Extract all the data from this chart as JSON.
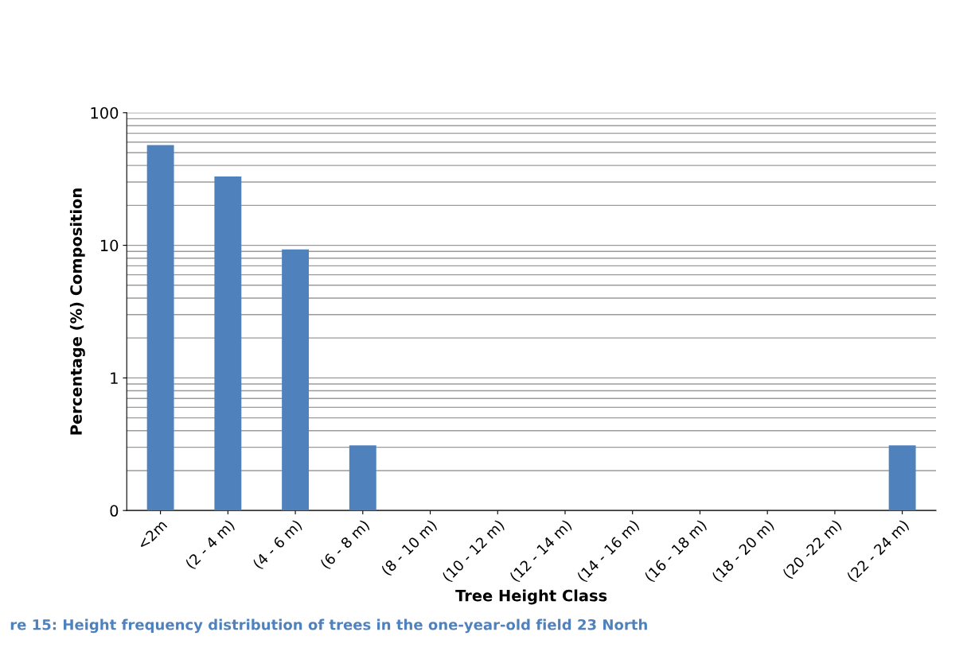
{
  "chart_data": {
    "type": "bar",
    "xlabel": "Tree Height Class",
    "ylabel": "Percentage (%) Composition",
    "categories": [
      "<2m",
      "(2 - 4 m)",
      "(4 - 6 m)",
      "(6 - 8 m)",
      "(8 - 10 m)",
      "(10 - 12 m)",
      "(12 - 14 m)",
      "(14 - 16 m)",
      "(16 - 18 m)",
      "(18 - 20 m)",
      "(20 -22 m)",
      "(22 - 24 m)"
    ],
    "values": [
      57,
      33,
      9.3,
      0.31,
      null,
      null,
      null,
      null,
      null,
      null,
      null,
      0.31
    ],
    "color": "#4f81bd",
    "log": true,
    "ylim": [
      0.1,
      100
    ],
    "yticks": [
      100,
      10,
      1,
      {
        "value": 0.1,
        "label": "0"
      }
    ],
    "grid": "y",
    "annotations": [
      "re 15: Height frequency distribution of trees in the one-year-old field 23 North"
    ]
  }
}
